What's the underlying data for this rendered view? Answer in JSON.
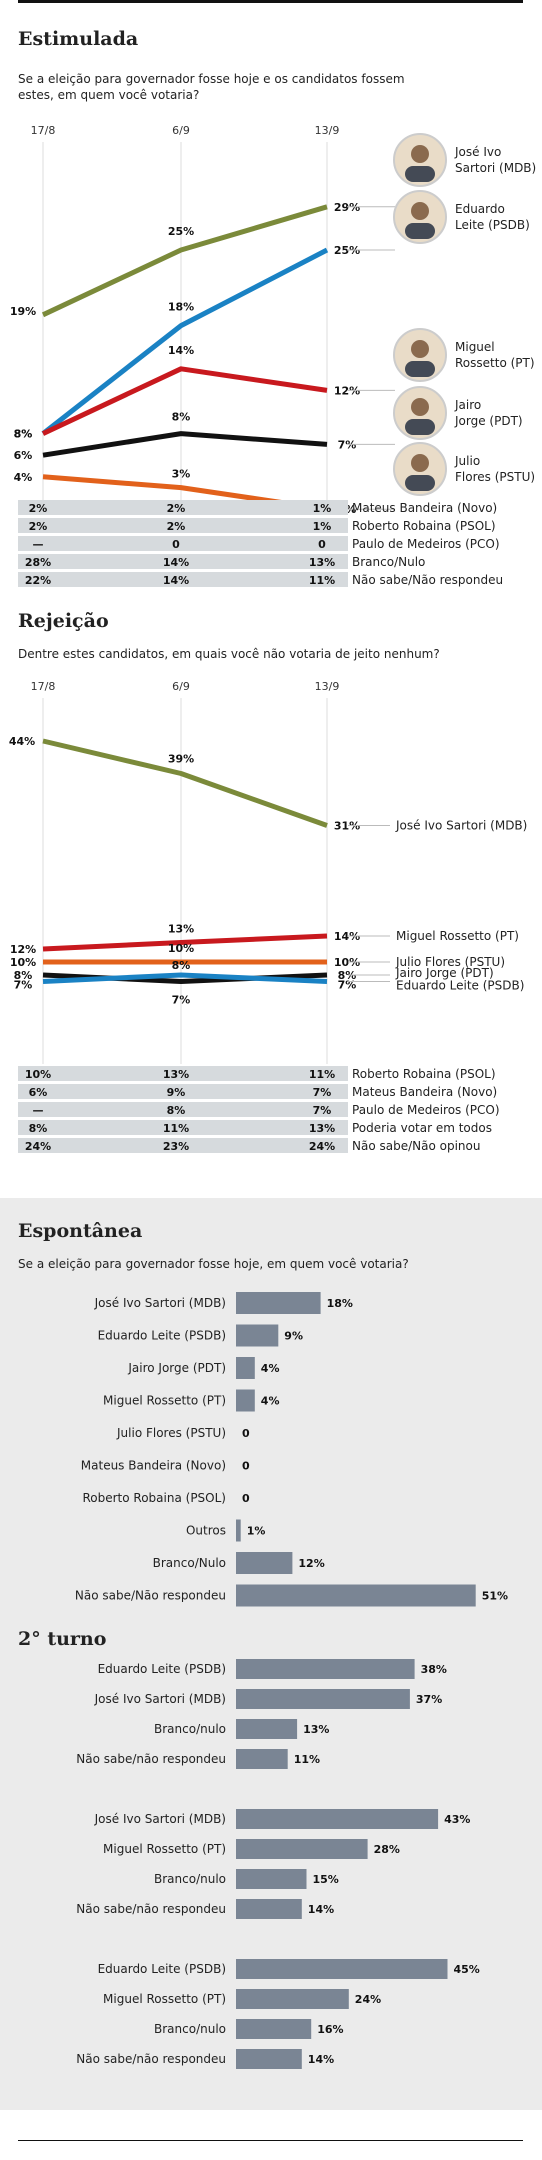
{
  "colors": {
    "sartori": "#7b8a3a",
    "leite": "#1a82c4",
    "rossetto": "#c8191e",
    "jairo": "#111111",
    "flores": "#e2611b",
    "bar": "#7a8594",
    "rowgray": "#d6dadd"
  },
  "estimulada": {
    "title": "Estimulada",
    "question": "Se a eleição para governador fosse hoje e os candidatos fossem estes, em quem você votaria?",
    "dates": [
      "17/8",
      "6/9",
      "13/9"
    ],
    "candidates": [
      {
        "name": "José Ivo Sartori (MDB)",
        "color_key": "sartori",
        "values": [
          19,
          25,
          29
        ],
        "labels": [
          "19%",
          "25%",
          "29%"
        ],
        "photo": "sartori-photo"
      },
      {
        "name": "Eduardo Leite (PSDB)",
        "color_key": "leite",
        "values": [
          8,
          18,
          25
        ],
        "labels": [
          "8%",
          "18%",
          "25%"
        ],
        "photo": "leite-photo"
      },
      {
        "name": "Miguel Rossetto (PT)",
        "color_key": "rossetto",
        "values": [
          8,
          14,
          12
        ],
        "labels": [
          "8%",
          "14%",
          "12%"
        ],
        "photo": "rossetto-photo"
      },
      {
        "name": "Jairo Jorge (PDT)",
        "color_key": "jairo",
        "values": [
          6,
          8,
          7
        ],
        "labels": [
          "6%",
          "8%",
          "7%"
        ],
        "photo": "jairo-photo"
      },
      {
        "name": "Julio Flores (PSTU)",
        "color_key": "flores",
        "values": [
          4,
          3,
          1
        ],
        "labels": [
          "4%",
          "3%",
          "1%"
        ],
        "photo": "flores-photo"
      }
    ],
    "photo_labels": [
      {
        "l1": "José Ivo",
        "l2": "Sartori (MDB)"
      },
      {
        "l1": "Eduardo",
        "l2": "Leite (PSDB)"
      },
      {
        "l1": "Miguel",
        "l2": "Rossetto (PT)"
      },
      {
        "l1": "Jairo",
        "l2": "Jorge (PDT)"
      },
      {
        "l1": "Julio",
        "l2": "Flores (PSTU)"
      }
    ],
    "table": [
      {
        "v": [
          "2%",
          "2%",
          "1%"
        ],
        "name": "Mateus Bandeira (Novo)"
      },
      {
        "v": [
          "2%",
          "2%",
          "1%"
        ],
        "name": "Roberto Robaina (PSOL)"
      },
      {
        "v": [
          "—",
          "0",
          "0"
        ],
        "name": "Paulo de Medeiros (PCO)"
      },
      {
        "v": [
          "28%",
          "14%",
          "13%"
        ],
        "name": "Branco/Nulo"
      },
      {
        "v": [
          "22%",
          "14%",
          "11%"
        ],
        "name": "Não sabe/Não respondeu"
      }
    ]
  },
  "rejeicao": {
    "title": "Rejeição",
    "question": "Dentre estes candidatos, em quais você não votaria de jeito nenhum?",
    "dates": [
      "17/8",
      "6/9",
      "13/9"
    ],
    "candidates": [
      {
        "name": "José Ivo Sartori (MDB)",
        "color_key": "sartori",
        "values": [
          44,
          39,
          31
        ],
        "labels": [
          "44%",
          "39%",
          "31%"
        ]
      },
      {
        "name": "Miguel Rossetto (PT)",
        "color_key": "rossetto",
        "values": [
          12,
          13,
          14
        ],
        "labels": [
          "12%",
          "13%",
          "14%"
        ]
      },
      {
        "name": "Julio Flores (PSTU)",
        "color_key": "flores",
        "values": [
          10,
          10,
          10
        ],
        "labels": [
          "10%",
          "10%",
          "10%"
        ]
      },
      {
        "name": "Jairo Jorge (PDT)",
        "color_key": "jairo",
        "values": [
          8,
          7,
          8
        ],
        "labels": [
          "8%",
          "7%",
          "8%"
        ]
      },
      {
        "name": "Eduardo Leite (PSDB)",
        "color_key": "leite",
        "values": [
          7,
          8,
          7
        ],
        "labels": [
          "7%",
          "8%",
          "7%"
        ]
      }
    ],
    "table": [
      {
        "v": [
          "10%",
          "13%",
          "11%"
        ],
        "name": "Roberto Robaina (PSOL)"
      },
      {
        "v": [
          "6%",
          "9%",
          "7%"
        ],
        "name": "Mateus Bandeira (Novo)"
      },
      {
        "v": [
          "—",
          "8%",
          "7%"
        ],
        "name": "Paulo de Medeiros (PCO)"
      },
      {
        "v": [
          "8%",
          "11%",
          "13%"
        ],
        "name": "Poderia votar em todos"
      },
      {
        "v": [
          "24%",
          "23%",
          "24%"
        ],
        "name": "Não sabe/Não opinou"
      }
    ]
  },
  "espontanea": {
    "title": "Espontânea",
    "question": "Se a eleição para governador fosse hoje,  em quem você votaria?"
  },
  "segundo_turno": {
    "title": "2° turno"
  },
  "chart_data": [
    {
      "type": "line",
      "title": "Estimulada",
      "x": [
        "17/8",
        "6/9",
        "13/9"
      ],
      "series": [
        {
          "name": "José Ivo Sartori (MDB)",
          "values": [
            19,
            25,
            29
          ]
        },
        {
          "name": "Eduardo Leite (PSDB)",
          "values": [
            8,
            18,
            25
          ]
        },
        {
          "name": "Miguel Rossetto (PT)",
          "values": [
            8,
            14,
            12
          ]
        },
        {
          "name": "Jairo Jorge (PDT)",
          "values": [
            6,
            8,
            7
          ]
        },
        {
          "name": "Julio Flores (PSTU)",
          "values": [
            4,
            3,
            1
          ]
        }
      ],
      "ylim": [
        0,
        30
      ]
    },
    {
      "type": "line",
      "title": "Rejeição",
      "x": [
        "17/8",
        "6/9",
        "13/9"
      ],
      "series": [
        {
          "name": "José Ivo Sartori (MDB)",
          "values": [
            44,
            39,
            31
          ]
        },
        {
          "name": "Miguel Rossetto (PT)",
          "values": [
            12,
            13,
            14
          ]
        },
        {
          "name": "Julio Flores (PSTU)",
          "values": [
            10,
            10,
            10
          ]
        },
        {
          "name": "Jairo Jorge (PDT)",
          "values": [
            8,
            7,
            8
          ]
        },
        {
          "name": "Eduardo Leite (PSDB)",
          "values": [
            7,
            8,
            7
          ]
        }
      ],
      "ylim": [
        0,
        45
      ]
    },
    {
      "type": "bar",
      "title": "Espontânea",
      "categories": [
        "José Ivo Sartori (MDB)",
        "Eduardo Leite (PSDB)",
        "Jairo Jorge (PDT)",
        "Miguel Rossetto (PT)",
        "Julio Flores (PSTU)",
        "Mateus Bandeira (Novo)",
        "Roberto Robaina (PSOL)",
        "Outros",
        "Branco/Nulo",
        "Não sabe/Não respondeu"
      ],
      "values": [
        18,
        9,
        4,
        4,
        0,
        0,
        0,
        1,
        12,
        51
      ],
      "labels": [
        "18%",
        "9%",
        "4%",
        "4%",
        "0",
        "0",
        "0",
        "1%",
        "12%",
        "51%"
      ]
    },
    {
      "type": "bar",
      "title": "2° turno",
      "categories": [
        "Eduardo Leite (PSDB)",
        "José Ivo Sartori (MDB)",
        "Branco/nulo",
        "Não sabe/não respondeu"
      ],
      "values": [
        38,
        37,
        13,
        11
      ],
      "labels": [
        "38%",
        "37%",
        "13%",
        "11%"
      ]
    },
    {
      "type": "bar",
      "categories": [
        "José Ivo Sartori (MDB)",
        "Miguel Rossetto (PT)",
        "Branco/nulo",
        "Não sabe/não respondeu"
      ],
      "values": [
        43,
        28,
        15,
        14
      ],
      "labels": [
        "43%",
        "28%",
        "15%",
        "14%"
      ]
    },
    {
      "type": "bar",
      "categories": [
        "Eduardo Leite (PSDB)",
        "Miguel Rossetto (PT)",
        "Branco/nulo",
        "Não sabe/não respondeu"
      ],
      "values": [
        45,
        24,
        16,
        14
      ],
      "labels": [
        "45%",
        "24%",
        "16%",
        "14%"
      ]
    }
  ]
}
